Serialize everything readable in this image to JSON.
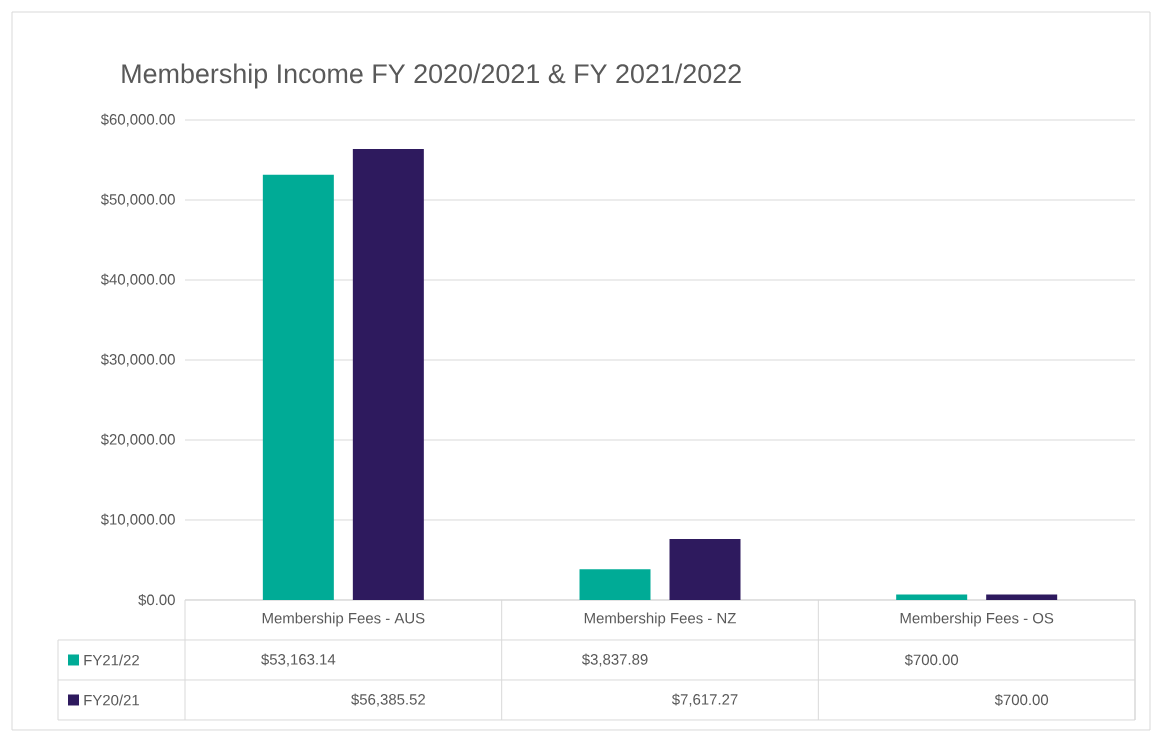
{
  "chart_data": {
    "type": "bar",
    "title": "Membership Income FY 2020/2021 & FY 2021/2022",
    "categories": [
      "Membership Fees - AUS",
      "Membership Fees - NZ",
      "Membership Fees - OS"
    ],
    "series": [
      {
        "name": "FY21/22",
        "color": "#00ab96",
        "values": [
          53163.14,
          3837.89,
          700.0
        ],
        "value_labels": [
          "$53,163.14",
          "$3,837.89",
          "$700.00"
        ]
      },
      {
        "name": "FY20/21",
        "color": "#2e1a5e",
        "values": [
          56385.52,
          7617.27,
          700.0
        ],
        "value_labels": [
          "$56,385.52",
          "$7,617.27",
          "$700.00"
        ]
      }
    ],
    "ylim": [
      0,
      60000
    ],
    "yticks": [
      {
        "value": 0,
        "label": "$0.00"
      },
      {
        "value": 10000,
        "label": "$10,000.00"
      },
      {
        "value": 20000,
        "label": "$20,000.00"
      },
      {
        "value": 30000,
        "label": "$30,000.00"
      },
      {
        "value": 40000,
        "label": "$40,000.00"
      },
      {
        "value": 50000,
        "label": "$50,000.00"
      },
      {
        "value": 60000,
        "label": "$60,000.00"
      }
    ],
    "grid": "y",
    "legend": "bottom"
  }
}
